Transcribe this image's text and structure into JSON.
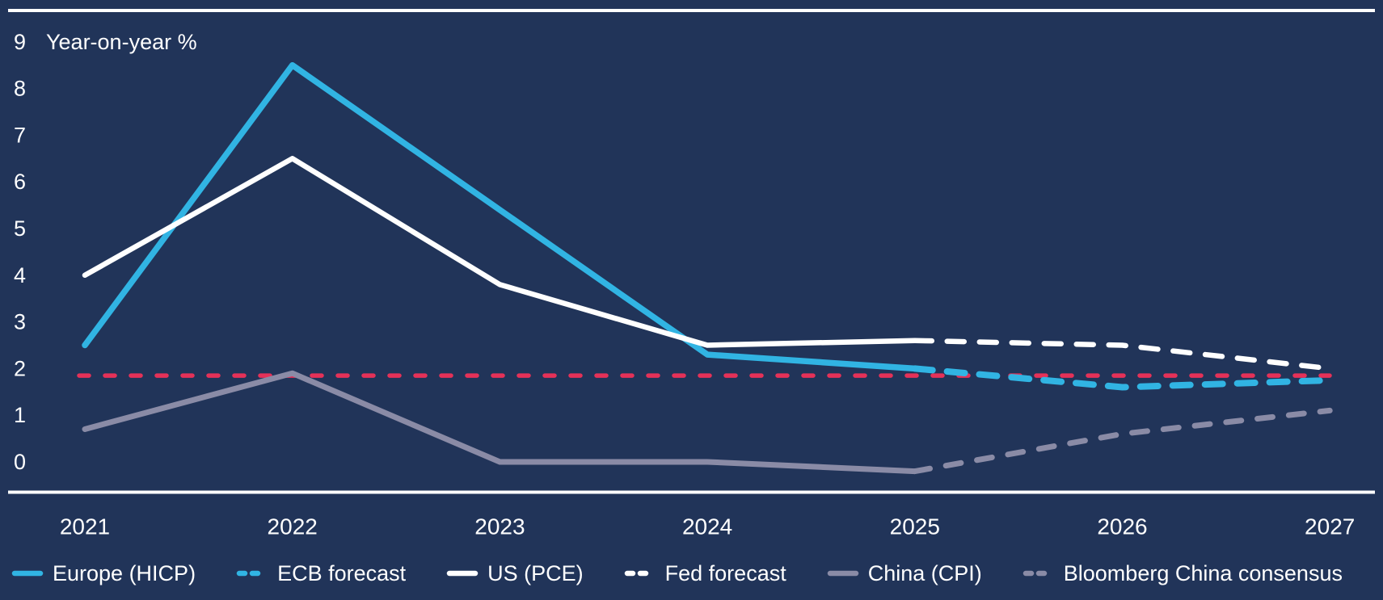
{
  "chart_data": {
    "type": "line",
    "title": "",
    "ylabel": "Year-on-year %",
    "x_tick_labels": [
      "2021",
      "2022",
      "2023",
      "2024",
      "2025",
      "2026",
      "2027"
    ],
    "y_ticks": [
      0,
      1,
      2,
      3,
      4,
      5,
      6,
      7,
      8,
      9
    ],
    "ylim": [
      -0.6,
      9.7
    ],
    "grid": false,
    "legend_position": "bottom",
    "series": [
      {
        "name": "Europe (HICP)",
        "style": "solid",
        "color": "#31B4E3",
        "x": [
          2021,
          2022,
          2023,
          2024,
          2025
        ],
        "y": [
          2.5,
          8.5,
          5.4,
          2.3,
          2.0
        ]
      },
      {
        "name": "ECB forecast",
        "style": "dashed",
        "color": "#31B4E3",
        "x": [
          2025,
          2026,
          2027
        ],
        "y": [
          2.0,
          1.6,
          1.75
        ]
      },
      {
        "name": "US (PCE)",
        "style": "solid",
        "color": "#FFFFFF",
        "x": [
          2021,
          2022,
          2023,
          2024,
          2025
        ],
        "y": [
          4.0,
          6.5,
          3.8,
          2.5,
          2.6
        ]
      },
      {
        "name": "Fed forecast",
        "style": "dashed",
        "color": "#FFFFFF",
        "x": [
          2025,
          2026,
          2027
        ],
        "y": [
          2.6,
          2.5,
          2.0
        ]
      },
      {
        "name": "China (CPI)",
        "style": "solid",
        "color": "#8A8BA6",
        "x": [
          2021,
          2022,
          2023,
          2024,
          2025
        ],
        "y": [
          0.7,
          1.9,
          0.0,
          0.0,
          -0.2
        ]
      },
      {
        "name": "Bloomberg China consensus",
        "style": "dashed",
        "color": "#8A8BA6",
        "x": [
          2025,
          2026,
          2027
        ],
        "y": [
          -0.2,
          0.6,
          1.1
        ]
      }
    ],
    "target_line": {
      "value": 1.85,
      "color": "#E53158",
      "style": "dashed"
    }
  },
  "colors": {
    "background": "#213459",
    "text": "#FFFFFF",
    "axis_rule": "#FFFFFF"
  }
}
